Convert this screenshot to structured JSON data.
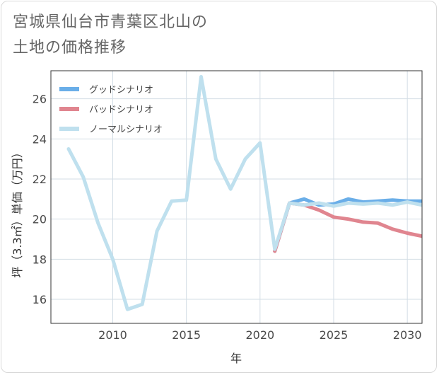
{
  "title_line1": "宮城県仙台市青葉区北山の",
  "title_line2": "土地の価格推移",
  "chart_data": {
    "type": "line",
    "title": "宮城県仙台市青葉区北山の土地の価格推移",
    "xlabel": "年",
    "ylabel": "坪（3.3㎡）単価（万円）",
    "xlim": [
      2005.8,
      2031
    ],
    "ylim": [
      14.8,
      27.4
    ],
    "xticks": [
      2010,
      2015,
      2020,
      2025,
      2030
    ],
    "yticks": [
      16,
      18,
      20,
      22,
      24,
      26
    ],
    "x_tick_labels": [
      "2010",
      "2015",
      "2020",
      "2025",
      "2030"
    ],
    "y_tick_labels": [
      "16",
      "18",
      "20",
      "22",
      "24",
      "26"
    ],
    "legend_position": "top-left",
    "series": [
      {
        "name": "グッドシナリオ",
        "color": "#6aaee8",
        "x": [
          2021,
          2022,
          2023,
          2024,
          2025,
          2026,
          2027,
          2028,
          2029,
          2030,
          2031
        ],
        "values": [
          18.4,
          20.8,
          21.0,
          20.7,
          20.75,
          21.0,
          20.85,
          20.9,
          20.95,
          20.9,
          20.9
        ]
      },
      {
        "name": "バッドシナリオ",
        "color": "#e0858f",
        "x": [
          2021,
          2022,
          2023,
          2024,
          2025,
          2026,
          2027,
          2028,
          2029,
          2030,
          2031
        ],
        "values": [
          18.4,
          20.8,
          20.7,
          20.45,
          20.1,
          20.0,
          19.85,
          19.8,
          19.5,
          19.3,
          19.15
        ]
      },
      {
        "name": "ノーマルシナリオ",
        "color": "#bfe0ee",
        "x": [
          2007,
          2008,
          2009,
          2010,
          2011,
          2012,
          2013,
          2014,
          2015,
          2016,
          2017,
          2018,
          2019,
          2020,
          2021,
          2022,
          2023,
          2024,
          2025,
          2026,
          2027,
          2028,
          2029,
          2030,
          2031
        ],
        "values": [
          23.5,
          22.1,
          19.8,
          18.0,
          15.5,
          15.75,
          19.4,
          20.9,
          20.95,
          27.1,
          23.0,
          21.5,
          23.0,
          23.8,
          18.5,
          20.8,
          20.7,
          20.8,
          20.65,
          20.8,
          20.75,
          20.8,
          20.7,
          20.85,
          20.7
        ]
      }
    ]
  }
}
